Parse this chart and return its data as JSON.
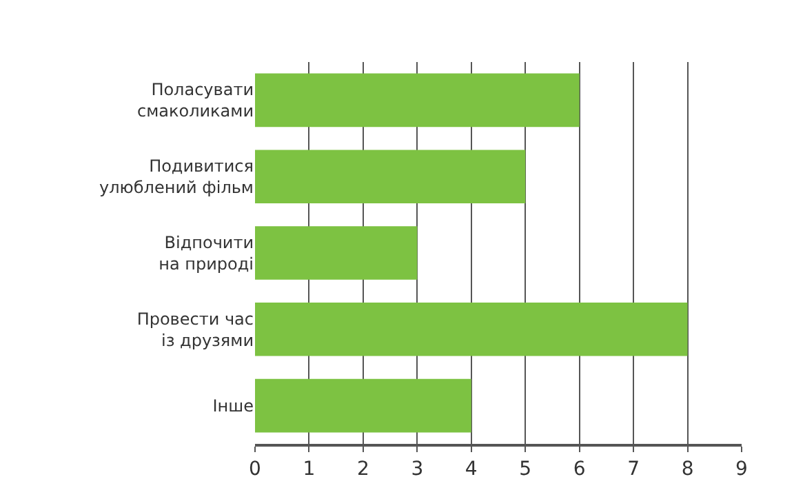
{
  "chart_data": {
    "type": "bar",
    "orientation": "horizontal",
    "categories": [
      "Поласувати\nсмаколиками",
      "Подивитися\nулюблений фільм",
      "Відпочити\nна природі",
      "Провести час\nіз друзями",
      "Інше"
    ],
    "values": [
      6,
      5,
      3,
      8,
      4
    ],
    "color": "#7dc242",
    "xlim": [
      0,
      9
    ],
    "xticks": [
      0,
      1,
      2,
      3,
      4,
      5,
      6,
      7,
      8,
      9
    ],
    "grid": "x"
  }
}
